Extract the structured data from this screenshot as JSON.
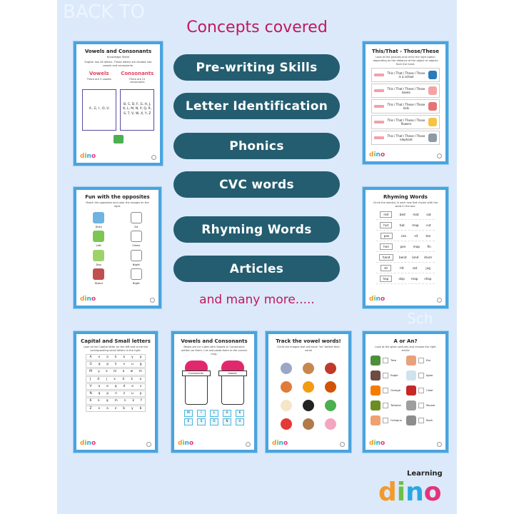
{
  "heading": "Concepts covered",
  "concepts": [
    "Pre-writing Skills",
    "Letter Identification",
    "Phonics",
    "CVC words",
    "Rhyming Words",
    "Articles"
  ],
  "more": "and many more.....",
  "logo": {
    "top": "Learning",
    "letters": [
      "d",
      "i",
      "n",
      "o"
    ]
  },
  "colors": {
    "heading": "#c2185b",
    "pill": "#245d70",
    "card_border": "#4aa3df",
    "background": "#dbe9fb"
  },
  "worksheets": {
    "vowels_sheet": {
      "title": "Vowels and Consonants",
      "subtitle": "Knowledge Sheet",
      "intro": "English has 26 letters. These letters are divided into vowels and consonants.",
      "vowels_heading": "Vowels",
      "vowels_note": "There are 5 vowels",
      "vowels_list": "A , E, I , O, U",
      "consonants_heading": "Consonants",
      "consonants_note": "There are 21 consonants",
      "consonants_list": "B, C, D, F, G, H, J, K, L, M, N, P, Q, R, S, T, V, W, X, Y, Z"
    },
    "this_that": {
      "title": "This/That - Those/These",
      "instruction": "Look at the pictures and circle the right option depending on the distance of the object or objects from the hand.",
      "rows": [
        "This / That / These / Those is a school",
        "This / That / These / Those books",
        "This / That / These / Those kids",
        "This / That / These / Those flowers",
        "This / That / These / Those elephant"
      ]
    },
    "opposites": {
      "title": "Fun with the opposites",
      "instruction": "Match the opposites and color the images on the right.",
      "left": [
        "Dirty",
        "Left",
        "Day",
        "Stand"
      ],
      "right": [
        "Sit",
        "Clean",
        "Night",
        "Right"
      ]
    },
    "rhyming": {
      "title": "Rhyming Words",
      "instruction": "Circle the word(s) in each row that rhyme with the word in the box.",
      "rows": [
        [
          "red",
          "bed",
          "mat",
          "sat"
        ],
        [
          "hut",
          "tub",
          "map",
          "cut"
        ],
        [
          "pan",
          "can",
          "sit",
          "tan"
        ],
        [
          "hen",
          "pen",
          "map",
          "fin"
        ],
        [
          "hand",
          "bend",
          "land",
          "drum"
        ],
        [
          "sit",
          "hit",
          "sat",
          "jug"
        ],
        [
          "hop",
          "skip",
          "map",
          "shop"
        ]
      ]
    },
    "capital_small": {
      "title": "Capital and Small letters",
      "instruction": "Look at the Capital letter on the left and circle the corresponding small letters in the right.",
      "rows": [
        [
          "A",
          "x",
          "a",
          "k",
          "a",
          "y",
          "p"
        ],
        [
          "G",
          "q",
          "p",
          "k",
          "v",
          "u",
          "g"
        ],
        [
          "M",
          "y",
          "x",
          "m",
          "a",
          "w",
          "m"
        ],
        [
          "J",
          "d",
          "j",
          "x",
          "d",
          "k",
          "o"
        ],
        [
          "V",
          "a",
          "e",
          "q",
          "d",
          "e",
          "v"
        ],
        [
          "N",
          "q",
          "p",
          "n",
          "z",
          "u",
          "p"
        ],
        [
          "K",
          "k",
          "q",
          "m",
          "n",
          "k",
          "f"
        ],
        [
          "Z",
          "x",
          "a",
          "z",
          "b",
          "y",
          "b"
        ]
      ]
    },
    "cut_paste": {
      "title": "Vowels and Consonants",
      "instruction": "Below are ice cubes with Vowels or Consonants written on them. Cut and paste them in the correct mug.",
      "cups": [
        "Consonants",
        "Vowels"
      ],
      "cubes": [
        "M",
        "I",
        "L",
        "A",
        "K",
        "E",
        "S",
        "O",
        "N",
        "U"
      ]
    },
    "vowel_words": {
      "title": "Track the vowel words!",
      "instruction": "Circle the images that will have \"an\" before their name"
    },
    "a_or_an": {
      "title": "A or An?",
      "instruction": "Look at the given pictures and choose the right article",
      "items": [
        "Tree",
        "Ear",
        "Eagle",
        "Igloo",
        "Orange",
        "Cake",
        "Tortoise",
        "Mouse",
        "Octopus",
        "Rock"
      ]
    }
  }
}
